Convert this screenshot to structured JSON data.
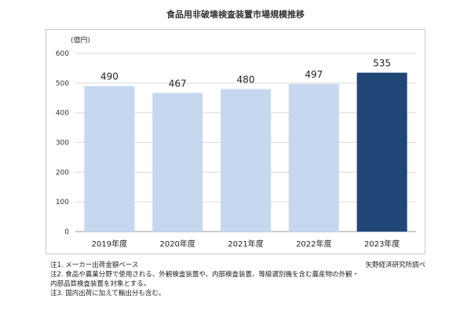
{
  "chart_data": {
    "type": "bar",
    "title": "食品用非破壊検査装置市場規模推移",
    "ylabel": "(億円)",
    "categories": [
      "2019年度",
      "2020年度",
      "2021年度",
      "2022年度",
      "2023年度"
    ],
    "values": [
      490,
      467,
      480,
      497,
      535
    ],
    "ylim": [
      0,
      600
    ],
    "yticks": [
      0,
      100,
      200,
      300,
      400,
      500,
      600
    ],
    "colors": [
      "#c6d8f0",
      "#c6d8f0",
      "#c6d8f0",
      "#c6d8f0",
      "#1f4677"
    ],
    "grid": true,
    "legend": "none"
  },
  "notes": [
    "注1. メーカー出荷金額ベース",
    "注2. 食品や農業分野で使用される、外観検査装置や、内部検査装置、等級選別機を含む農産物の外観・",
    "内部品質検査装置を対象とする。",
    "注3. 国内出荷に加えて輸出分も含む。"
  ],
  "source": "矢野経済研究所調べ"
}
